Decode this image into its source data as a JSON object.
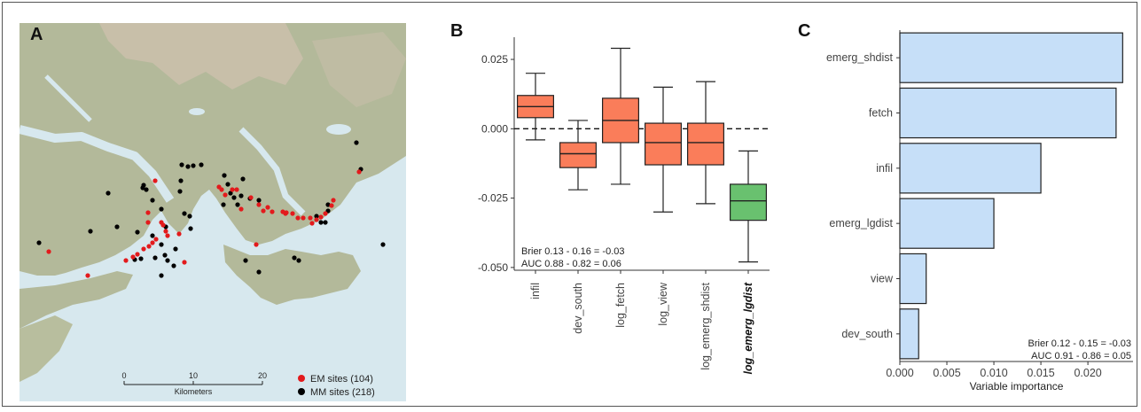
{
  "panels": {
    "a": {
      "letter": "A"
    },
    "b": {
      "letter": "B"
    },
    "c": {
      "letter": "C"
    }
  },
  "map": {
    "scalebar": {
      "ticks": [
        "0",
        "10",
        "20"
      ],
      "unit": "Kilometers"
    },
    "legend": [
      {
        "label": "EM sites (104)",
        "color": "#e31a1c"
      },
      {
        "label": "MM sites (218)",
        "color": "#000000"
      }
    ],
    "colors": {
      "water": "#d7e8ee",
      "land": "#b3b99a",
      "highland": "#cbbfab"
    }
  },
  "chart_data": [
    {
      "type": "box",
      "panel": "B",
      "categories": [
        "infil",
        "dev_south",
        "log_fetch",
        "log_view",
        "log_emerg_shdist",
        "log_emerg_lgdist"
      ],
      "highlighted_category": "log_emerg_lgdist",
      "boxes": [
        {
          "category": "infil",
          "whisker_low": -0.004,
          "q1": 0.004,
          "median": 0.008,
          "q3": 0.012,
          "whisker_high": 0.02,
          "color": "#fa7d5a"
        },
        {
          "category": "dev_south",
          "whisker_low": -0.022,
          "q1": -0.014,
          "median": -0.009,
          "q3": -0.005,
          "whisker_high": 0.003,
          "color": "#fa7d5a"
        },
        {
          "category": "log_fetch",
          "whisker_low": -0.02,
          "q1": -0.005,
          "median": 0.003,
          "q3": 0.011,
          "whisker_high": 0.029,
          "color": "#fa7d5a"
        },
        {
          "category": "log_view",
          "whisker_low": -0.03,
          "q1": -0.013,
          "median": -0.005,
          "q3": 0.002,
          "whisker_high": 0.015,
          "color": "#fa7d5a"
        },
        {
          "category": "log_emerg_shdist",
          "whisker_low": -0.027,
          "q1": -0.013,
          "median": -0.005,
          "q3": 0.002,
          "whisker_high": 0.017,
          "color": "#fa7d5a"
        },
        {
          "category": "log_emerg_lgdist",
          "whisker_low": -0.048,
          "q1": -0.033,
          "median": -0.026,
          "q3": -0.02,
          "whisker_high": -0.008,
          "color": "#69c16f"
        }
      ],
      "yticks": [
        "0.025",
        "0.000",
        "-0.025",
        "-0.050"
      ],
      "ylim": [
        -0.051,
        0.033
      ],
      "reference_line": {
        "y": 0,
        "style": "dashed"
      },
      "annotations": [
        "Brier  0.13  -  0.16  =  -0.03",
        "AUC  0.88  -  0.82  =  0.06"
      ]
    },
    {
      "type": "bar",
      "panel": "C",
      "orientation": "horizontal",
      "categories": [
        "emerg_shdist",
        "fetch",
        "infil",
        "emerg_lgdist",
        "view",
        "dev_south"
      ],
      "values": [
        0.0237,
        0.023,
        0.015,
        0.01,
        0.0028,
        0.002
      ],
      "bar_color": "#c6dff8",
      "xticks": [
        "0.000",
        "0.005",
        "0.010",
        "0.015",
        "0.020"
      ],
      "xlim": [
        0,
        0.0248
      ],
      "xlabel": "Variable importance",
      "annotations": [
        "Brier  0.12  -  0.15  =  -0.03",
        "AUC  0.91  -  0.86  =  0.05"
      ]
    }
  ]
}
